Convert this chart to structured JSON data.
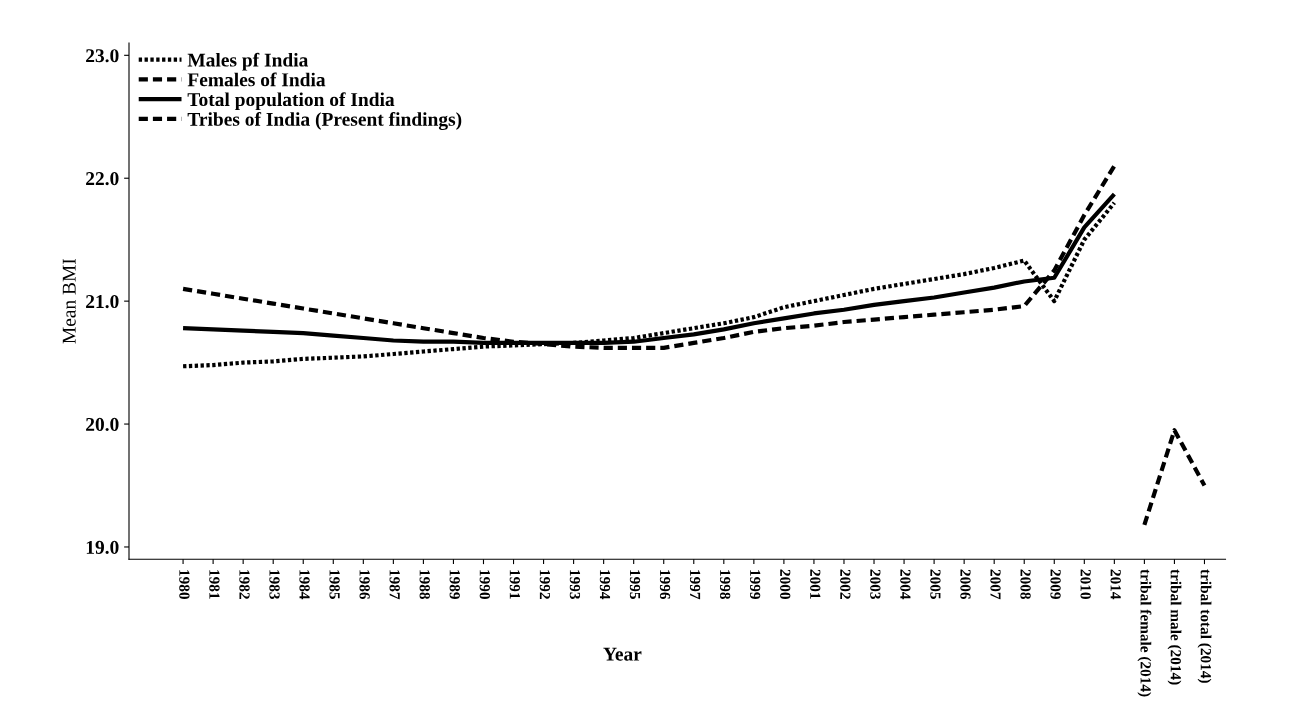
{
  "chart_data": {
    "type": "line",
    "xlabel": "Year",
    "ylabel": "Mean BMI",
    "categories": [
      "1980",
      "1981",
      "1982",
      "1983",
      "1984",
      "1985",
      "1986",
      "1987",
      "1988",
      "1989",
      "1990",
      "1991",
      "1992",
      "1993",
      "1994",
      "1995",
      "1996",
      "1997",
      "1998",
      "1999",
      "2000",
      "2001",
      "2002",
      "2003",
      "2004",
      "2005",
      "2006",
      "2007",
      "2008",
      "2009",
      "2010",
      "2014",
      "tribal female (2014)",
      "tribal male (2014)",
      "tribal total (2014)"
    ],
    "series": [
      {
        "name": "Males pf India",
        "color": "#000000",
        "line_style": "dotted",
        "values": [
          20.47,
          20.48,
          20.5,
          20.51,
          20.53,
          20.54,
          20.55,
          20.57,
          20.59,
          20.61,
          20.63,
          20.64,
          20.65,
          20.66,
          20.68,
          20.7,
          20.74,
          20.78,
          20.82,
          20.87,
          20.95,
          21.0,
          21.05,
          21.1,
          21.14,
          21.18,
          21.22,
          21.27,
          21.33,
          21.0,
          21.5,
          21.8,
          null,
          null,
          null
        ]
      },
      {
        "name": "Females of India",
        "color": "#000000",
        "line_style": "dashed",
        "values": [
          21.1,
          21.06,
          21.02,
          20.98,
          20.94,
          20.9,
          20.86,
          20.82,
          20.78,
          20.74,
          20.7,
          20.67,
          20.65,
          20.63,
          20.62,
          20.62,
          20.62,
          20.66,
          20.7,
          20.75,
          20.78,
          20.8,
          20.83,
          20.85,
          20.87,
          20.89,
          20.91,
          20.93,
          20.96,
          21.25,
          21.7,
          22.1,
          null,
          null,
          null
        ]
      },
      {
        "name": "Total population of India",
        "color": "#000000",
        "line_style": "solid",
        "values": [
          20.78,
          20.77,
          20.76,
          20.75,
          20.74,
          20.72,
          20.7,
          20.68,
          20.67,
          20.67,
          20.66,
          20.66,
          20.66,
          20.66,
          20.66,
          20.67,
          20.7,
          20.73,
          20.77,
          20.82,
          20.86,
          20.9,
          20.93,
          20.97,
          21.0,
          21.03,
          21.07,
          21.11,
          21.16,
          21.19,
          21.6,
          21.87,
          null,
          null,
          null
        ]
      },
      {
        "name": "Tribes of India (Present findings)",
        "color": "#000000",
        "line_style": "dashed",
        "values": [
          null,
          null,
          null,
          null,
          null,
          null,
          null,
          null,
          null,
          null,
          null,
          null,
          null,
          null,
          null,
          null,
          null,
          null,
          null,
          null,
          null,
          null,
          null,
          null,
          null,
          null,
          null,
          null,
          null,
          null,
          null,
          null,
          19.18,
          19.95,
          19.5
        ]
      }
    ],
    "ylim": [
      18.9,
      23.1
    ],
    "yticks": [
      {
        "value": 19,
        "label": "19.0"
      },
      {
        "value": 20,
        "label": "20.0"
      },
      {
        "value": 21,
        "label": "21.0"
      },
      {
        "value": 22,
        "label": "22.0"
      },
      {
        "value": 23,
        "label": "23.0"
      }
    ],
    "grid": false,
    "legend": "top left"
  }
}
